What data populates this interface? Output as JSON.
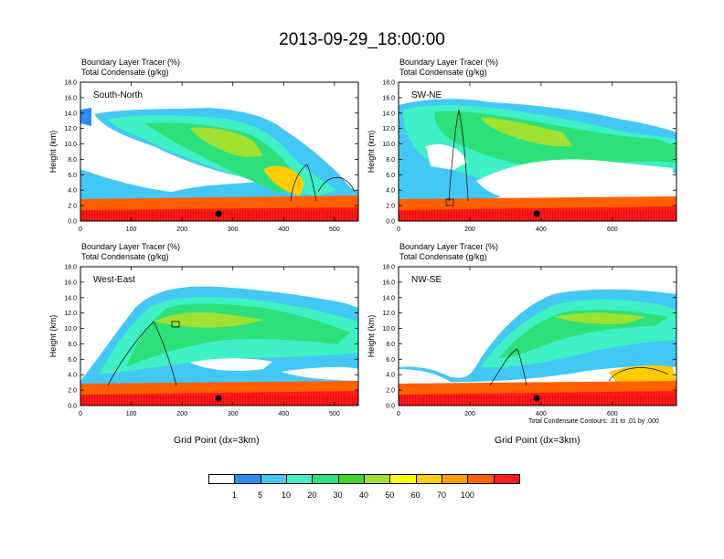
{
  "title": "2013-09-29_18:00:00",
  "panels_common": {
    "title_line1": "Boundary Layer Tracer   (%)",
    "title_line2": "Total Condensate   (g/kg)",
    "ylabel": "Height (km)",
    "xlabel": "Grid Point (dx=3km)"
  },
  "contour_note": "Total Condensate Contours: .01 to .01 by .000",
  "colorbar": {
    "colors": [
      "#ffffff",
      "#2b8cf5",
      "#43c7f5",
      "#3ef0c4",
      "#2ee07a",
      "#3cd52a",
      "#a0e030",
      "#ffff00",
      "#ffcc00",
      "#ffa000",
      "#ff6000",
      "#ff1a1a"
    ],
    "labels": [
      "1",
      "5",
      "10",
      "20",
      "30",
      "40",
      "50",
      "60",
      "70",
      "100"
    ]
  },
  "chart_data": [
    {
      "type": "heatmap",
      "panel": "South-North",
      "xlim": [
        0,
        547
      ],
      "ylim": [
        0,
        18
      ],
      "xticks": [
        0,
        100,
        200,
        300,
        400,
        500
      ],
      "yticks": [
        "0.0",
        "2.0",
        "4.0",
        "6.0",
        "8.0",
        "10.0",
        "12.0",
        "14.0",
        "16.0",
        "18.0"
      ],
      "marker_x": 272
    },
    {
      "type": "heatmap",
      "panel": "SW-NE",
      "xlim": [
        0,
        780
      ],
      "ylim": [
        0,
        18
      ],
      "xticks": [
        0,
        200,
        400,
        600
      ],
      "yticks": [
        "0.0",
        "2.0",
        "4.0",
        "6.0",
        "8.0",
        "10.0",
        "12.0",
        "14.0",
        "16.0",
        "18.0"
      ],
      "marker_x": 388
    },
    {
      "type": "heatmap",
      "panel": "West-East",
      "xlim": [
        0,
        547
      ],
      "ylim": [
        0,
        18
      ],
      "xticks": [
        0,
        100,
        200,
        300,
        400,
        500
      ],
      "yticks": [
        "0.0",
        "2.0",
        "4.0",
        "6.0",
        "8.0",
        "10.0",
        "12.0",
        "14.0",
        "16.0",
        "18.0"
      ],
      "marker_x": 272
    },
    {
      "type": "heatmap",
      "panel": "NW-SE",
      "xlim": [
        0,
        780
      ],
      "ylim": [
        0,
        18
      ],
      "xticks": [
        0,
        200,
        400,
        600
      ],
      "yticks": [
        "0.0",
        "2.0",
        "4.0",
        "6.0",
        "8.0",
        "10.0",
        "12.0",
        "14.0",
        "16.0",
        "18.0"
      ],
      "marker_x": 388
    }
  ]
}
